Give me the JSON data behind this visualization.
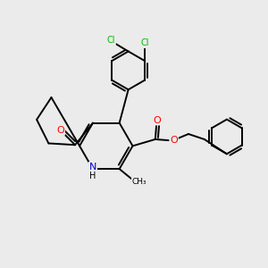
{
  "bg_color": "#ebebeb",
  "atom_colors": {
    "C": "#000000",
    "N": "#0000cc",
    "O": "#ff0000",
    "Cl": "#00bb00",
    "H": "#000000"
  },
  "bond_color": "#000000",
  "bond_width": 1.4,
  "figsize": [
    3.0,
    3.0
  ],
  "dpi": 100
}
